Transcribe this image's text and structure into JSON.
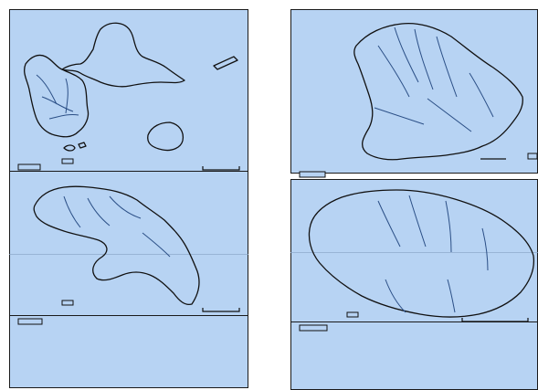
{
  "figure": {
    "panel_fill": "#b7d3f3",
    "coast_color": "#111111",
    "river_color": "#2b4f86"
  },
  "maps": [
    {
      "id": "guadeloupe"
    },
    {
      "id": "french-guiana"
    },
    {
      "id": "martinique"
    },
    {
      "id": "reunion"
    }
  ]
}
